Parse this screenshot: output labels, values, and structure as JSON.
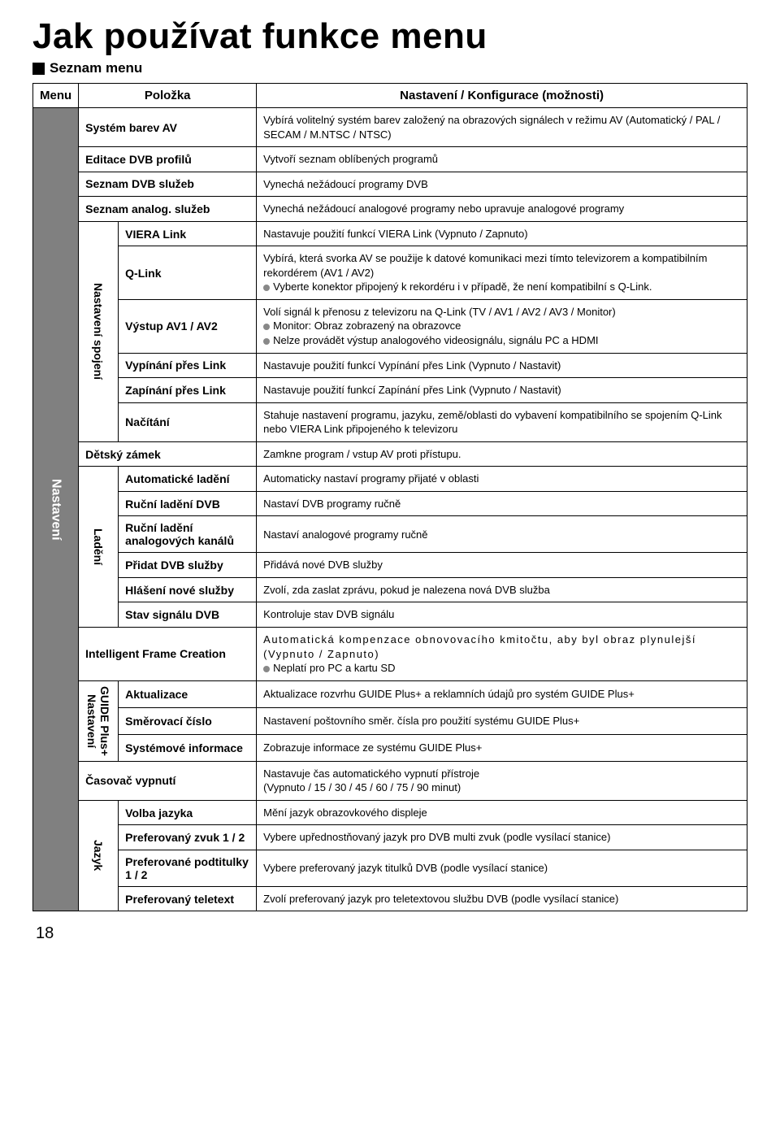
{
  "title": "Jak používat funkce menu",
  "subtitle": "Seznam menu",
  "headers": {
    "menu": "Menu",
    "polozka": "Položka",
    "nastaveni": "Nastavení / Konfigurace (možnosti)"
  },
  "groups": {
    "nastaveni": "Nastavení",
    "spojeni": "Nastavení spojení",
    "ladeni": "Ladění",
    "guide": "GUIDE Plus+\nNastavení",
    "jazyk": "Jazyk"
  },
  "rows": {
    "r1": {
      "item": "Systém barev AV",
      "desc": "Vybírá volitelný systém barev založený na obrazových signálech v režimu AV (Automatický / PAL / SECAM / M.NTSC / NTSC)"
    },
    "r2": {
      "item": "Editace DVB profilů",
      "desc": "Vytvoří seznam oblíbených programů"
    },
    "r3": {
      "item": "Seznam DVB služeb",
      "desc": "Vynechá nežádoucí programy DVB"
    },
    "r4": {
      "item": "Seznam analog. služeb",
      "desc": "Vynechá nežádoucí analogové programy nebo upravuje analogové programy"
    },
    "r5": {
      "item": "VIERA Link",
      "desc": "Nastavuje použití funkcí VIERA Link (Vypnuto / Zapnuto)"
    },
    "r6": {
      "item": "Q-Link",
      "desc1": "Vybírá, která svorka AV se použije k datové komunikaci mezi tímto televizorem a kompatibilním rekordérem (AV1 / AV2)",
      "desc2": "Vyberte konektor připojený k rekordéru i v případě, že není kompatibilní s Q-Link."
    },
    "r7": {
      "item": "Výstup AV1 / AV2",
      "desc1": "Volí signál k přenosu z televizoru na Q-Link (TV / AV1 / AV2 / AV3 / Monitor)",
      "desc2": "Monitor: Obraz zobrazený na obrazovce",
      "desc3": "Nelze provádět výstup analogového videosignálu, signálu PC a HDMI"
    },
    "r8": {
      "item": "Vypínání přes Link",
      "desc": "Nastavuje použití funkcí Vypínání přes Link (Vypnuto / Nastavit)"
    },
    "r9": {
      "item": "Zapínání přes Link",
      "desc": "Nastavuje použití funkcí Zapínání přes Link (Vypnuto / Nastavit)"
    },
    "r10": {
      "item": "Načítání",
      "desc": "Stahuje nastavení programu, jazyku, země/oblasti do vybavení kompatibilního se spojením Q-Link nebo VIERA Link připojeného k televizoru"
    },
    "r11": {
      "item": "Dětský zámek",
      "desc": "Zamkne program / vstup AV proti přístupu."
    },
    "r12": {
      "item": "Automatické ladění",
      "desc": "Automaticky nastaví programy přijaté v oblasti"
    },
    "r13": {
      "item": "Ruční ladění DVB",
      "desc": "Nastaví DVB programy ručně"
    },
    "r14": {
      "item": "Ruční ladění analogových kanálů",
      "desc": "Nastaví analogové programy ručně"
    },
    "r15": {
      "item": "Přidat DVB služby",
      "desc": "Přidává nové DVB služby"
    },
    "r16": {
      "item": "Hlášení nové služby",
      "desc": "Zvolí, zda zaslat zprávu, pokud je nalezena nová DVB služba"
    },
    "r17": {
      "item": "Stav signálu DVB",
      "desc": "Kontroluje stav DVB signálu"
    },
    "r18": {
      "item": "Intelligent Frame Creation",
      "desc1": "Automatická kompenzace obnovovacího kmitočtu, aby byl obraz plynulejší (Vypnuto / Zapnuto)",
      "desc2": "Neplatí pro PC a kartu SD"
    },
    "r19": {
      "item": "Aktualizace",
      "desc": "Aktualizace rozvrhu GUIDE Plus+ a reklamních údajů pro systém GUIDE Plus+"
    },
    "r20": {
      "item": "Směrovací číslo",
      "desc": "Nastavení poštovního směr. čísla pro použití systému GUIDE Plus+"
    },
    "r21": {
      "item": "Systémové informace",
      "desc": "Zobrazuje informace ze systému GUIDE Plus+"
    },
    "r22": {
      "item": "Časovač vypnutí",
      "desc": "Nastavuje čas automatického vypnutí přístroje\n(Vypnuto / 15 / 30 / 45 / 60 / 75 / 90 minut)"
    },
    "r23": {
      "item": "Volba jazyka",
      "desc": "Mění jazyk obrazovkového displeje"
    },
    "r24": {
      "item": "Preferovaný zvuk 1 / 2",
      "desc": "Vybere upřednostňovaný jazyk pro DVB multi zvuk (podle vysílací stanice)"
    },
    "r25": {
      "item": "Preferované podtitulky 1 / 2",
      "desc": "Vybere preferovaný jazyk titulků DVB (podle vysílací stanice)"
    },
    "r26": {
      "item": "Preferovaný teletext",
      "desc": "Zvolí preferovaný jazyk pro teletextovou službu DVB (podle vysílací stanice)"
    }
  },
  "pagenum": "18"
}
